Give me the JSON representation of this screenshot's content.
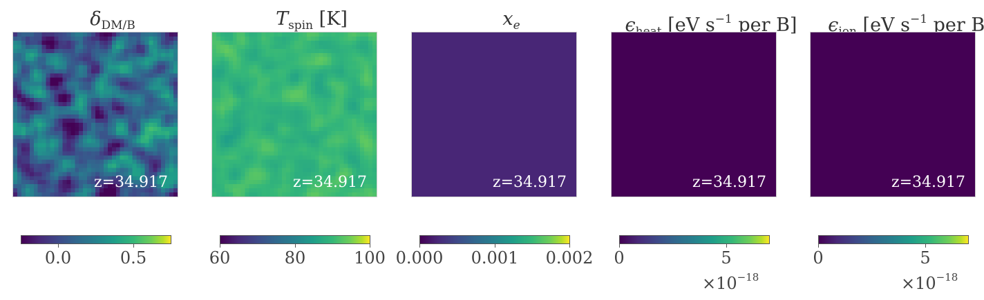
{
  "chart_data": [
    {
      "type": "heatmap",
      "title_symbol": "δ",
      "title_sub": "DM/B",
      "title_unit": "",
      "annotation": "z=34.917",
      "colormap": "viridis",
      "colorbar": {
        "range": [
          -0.25,
          0.75
        ],
        "ticks": [
          0.0,
          0.5
        ],
        "tick_labels": [
          "0.0",
          "0.5"
        ],
        "offset": ""
      },
      "field": {
        "kind": "noise",
        "mean": 0.08,
        "std": 0.14
      }
    },
    {
      "type": "heatmap",
      "title_symbol": "T",
      "title_sub": "spin",
      "title_unit": "[K]",
      "annotation": "z=34.917",
      "colormap": "viridis",
      "colorbar": {
        "range": [
          60,
          100
        ],
        "ticks": [
          60,
          80,
          100
        ],
        "tick_labels": [
          "60",
          "80",
          "100"
        ],
        "offset": ""
      },
      "field": {
        "kind": "noise",
        "mean": 86.5,
        "std": 1.3
      }
    },
    {
      "type": "heatmap",
      "title_symbol": "x",
      "title_sub": "e",
      "title_unit": "",
      "annotation": "z=34.917",
      "colormap": "viridis",
      "colorbar": {
        "range": [
          0.0,
          0.002
        ],
        "ticks": [
          0.0,
          0.001,
          0.002
        ],
        "tick_labels": [
          "0.000",
          "0.001",
          "0.002"
        ],
        "offset": ""
      },
      "field": {
        "kind": "uniform",
        "value": 0.00021
      }
    },
    {
      "type": "heatmap",
      "title_symbol": "ϵ",
      "title_sub": "heat",
      "title_unit_pre": "[eV s",
      "title_unit_sup": "−1",
      "title_unit_post": " per B]",
      "annotation": "z=34.917",
      "colormap": "viridis",
      "colorbar": {
        "range": [
          0,
          7
        ],
        "ticks": [
          0,
          5
        ],
        "tick_labels": [
          "0",
          "5"
        ],
        "offset_base": "×10",
        "offset_exp": "−18"
      },
      "field": {
        "kind": "uniform",
        "value": 0
      }
    },
    {
      "type": "heatmap",
      "title_symbol": "ϵ",
      "title_sub": "ion",
      "title_unit_pre": "[eV s",
      "title_unit_sup": "−1",
      "title_unit_post": " per B]",
      "annotation": "z=34.917",
      "colormap": "viridis",
      "colorbar": {
        "range": [
          0,
          7
        ],
        "ticks": [
          0,
          5
        ],
        "tick_labels": [
          "0",
          "5"
        ],
        "offset_base": "×10",
        "offset_exp": "−18"
      },
      "field": {
        "kind": "uniform",
        "value": 0
      }
    }
  ]
}
